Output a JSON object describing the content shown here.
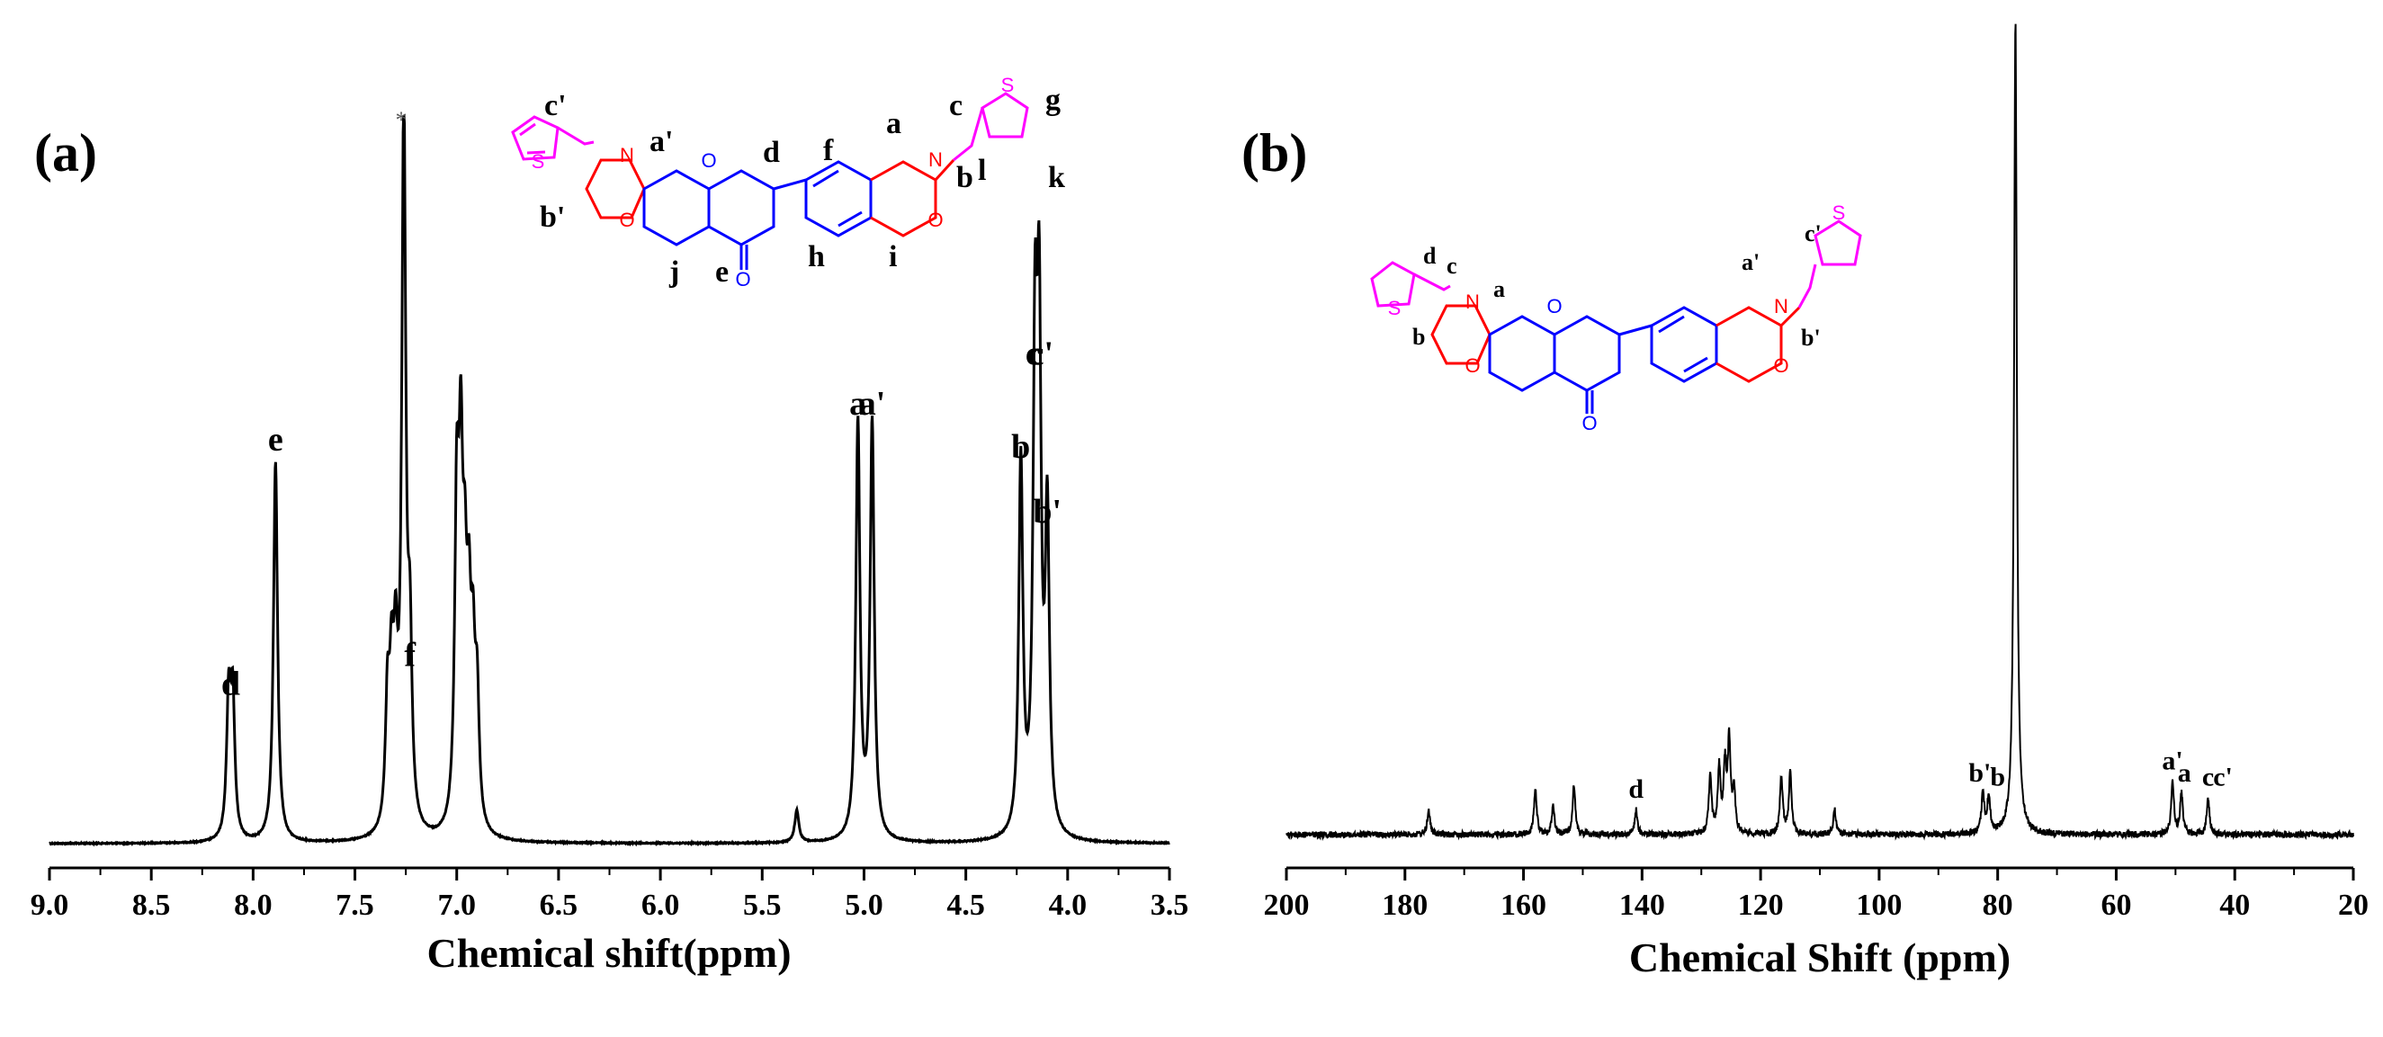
{
  "colors": {
    "axis": "#000000",
    "spectrum": "#000000",
    "oxazine_ring": "#ff0000",
    "core": "#0000ff",
    "thiophene": "#ff00ff"
  },
  "icons": {
    "solvent_marker": "asterisk-icon"
  },
  "chart_data": [
    {
      "type": "line",
      "panel_label": "(a)",
      "xlabel": "Chemical shift(ppm)",
      "ylabel": "",
      "title": "",
      "xlim": [
        9.0,
        3.5
      ],
      "x_reversed": true,
      "x_ticks": [
        "9.0",
        "8.5",
        "8.0",
        "7.5",
        "7.0",
        "6.5",
        "6.0",
        "5.5",
        "5.0",
        "4.5",
        "4.0",
        "3.5"
      ],
      "grid": false,
      "y_axis_visible": false,
      "series": [
        {
          "peaks": [
            {
              "x": 8.12,
              "y": 0.19
            },
            {
              "x": 8.1,
              "y": 0.19
            },
            {
              "x": 7.89,
              "y": 0.53
            },
            {
              "x": 7.34,
              "y": 0.17
            },
            {
              "x": 7.32,
              "y": 0.18
            },
            {
              "x": 7.3,
              "y": 0.2
            },
            {
              "x": 7.26,
              "y": 1.0
            },
            {
              "x": 7.23,
              "y": 0.23
            },
            {
              "x": 7.0,
              "y": 0.42
            },
            {
              "x": 6.98,
              "y": 0.44
            },
            {
              "x": 6.96,
              "y": 0.26
            },
            {
              "x": 6.94,
              "y": 0.24
            },
            {
              "x": 6.92,
              "y": 0.2
            },
            {
              "x": 6.9,
              "y": 0.17
            },
            {
              "x": 5.33,
              "y": 0.045
            },
            {
              "x": 5.03,
              "y": 0.58
            },
            {
              "x": 4.96,
              "y": 0.58
            },
            {
              "x": 4.23,
              "y": 0.52
            },
            {
              "x": 4.16,
              "y": 0.63
            },
            {
              "x": 4.14,
              "y": 0.65
            },
            {
              "x": 4.1,
              "y": 0.43
            }
          ]
        }
      ],
      "annotations": [
        {
          "label": "d",
          "x": 8.11,
          "y": 0.19
        },
        {
          "label": "e",
          "x": 7.89,
          "y": 0.53
        },
        {
          "label": "f",
          "x": 7.23,
          "y": 0.23
        },
        {
          "label": "a",
          "x": 5.03,
          "y": 0.58
        },
        {
          "label": "a'",
          "x": 4.96,
          "y": 0.58
        },
        {
          "label": "b",
          "x": 4.23,
          "y": 0.52
        },
        {
          "label": "c",
          "x": 4.17,
          "y": 0.65
        },
        {
          "label": "c'",
          "x": 4.13,
          "y": 0.65
        },
        {
          "label": "b'",
          "x": 4.1,
          "y": 0.43
        }
      ],
      "molecule_labels": [
        "c'",
        "a'",
        "d",
        "f",
        "a",
        "c",
        "g",
        "b'",
        "b",
        "l",
        "k",
        "j",
        "e",
        "h",
        "i"
      ],
      "atoms": [
        "N",
        "O",
        "O",
        "O",
        "N",
        "O",
        "S",
        "S"
      ]
    },
    {
      "type": "line",
      "panel_label": "(b)",
      "xlabel": "Chemical Shift (ppm)",
      "ylabel": "",
      "title": "",
      "xlim": [
        200,
        20
      ],
      "x_reversed": true,
      "x_ticks": [
        "200",
        "180",
        "160",
        "140",
        "120",
        "100",
        "80",
        "60",
        "40",
        "20"
      ],
      "grid": false,
      "y_axis_visible": false,
      "series": [
        {
          "peaks": [
            {
              "x": 176,
              "y": 0.03
            },
            {
              "x": 158,
              "y": 0.055
            },
            {
              "x": 155,
              "y": 0.035
            },
            {
              "x": 151.5,
              "y": 0.06
            },
            {
              "x": 141,
              "y": 0.03
            },
            {
              "x": 128.5,
              "y": 0.07
            },
            {
              "x": 127,
              "y": 0.08
            },
            {
              "x": 126,
              "y": 0.08
            },
            {
              "x": 125.3,
              "y": 0.11
            },
            {
              "x": 124.5,
              "y": 0.05
            },
            {
              "x": 116.5,
              "y": 0.07
            },
            {
              "x": 115,
              "y": 0.075
            },
            {
              "x": 107.5,
              "y": 0.03
            },
            {
              "x": 82.5,
              "y": 0.05
            },
            {
              "x": 81.5,
              "y": 0.045
            },
            {
              "x": 77,
              "y": 1.0
            },
            {
              "x": 50.5,
              "y": 0.065
            },
            {
              "x": 49,
              "y": 0.05
            },
            {
              "x": 44.5,
              "y": 0.045
            }
          ]
        }
      ],
      "annotations": [
        {
          "label": "d",
          "x": 141,
          "y": 0.03
        },
        {
          "label": "b'",
          "x": 83,
          "y": 0.05
        },
        {
          "label": "b",
          "x": 80,
          "y": 0.045
        },
        {
          "label": "a'",
          "x": 50.5,
          "y": 0.065
        },
        {
          "label": "a",
          "x": 48.5,
          "y": 0.05
        },
        {
          "label": "c",
          "x": 44.5,
          "y": 0.045
        },
        {
          "label": "c'",
          "x": 42,
          "y": 0.045
        }
      ],
      "molecule_labels": [
        "d",
        "c",
        "a",
        "a'",
        "c'",
        "b",
        "b'"
      ],
      "atoms": [
        "N",
        "O",
        "O",
        "O",
        "N",
        "O",
        "S",
        "S"
      ]
    }
  ]
}
